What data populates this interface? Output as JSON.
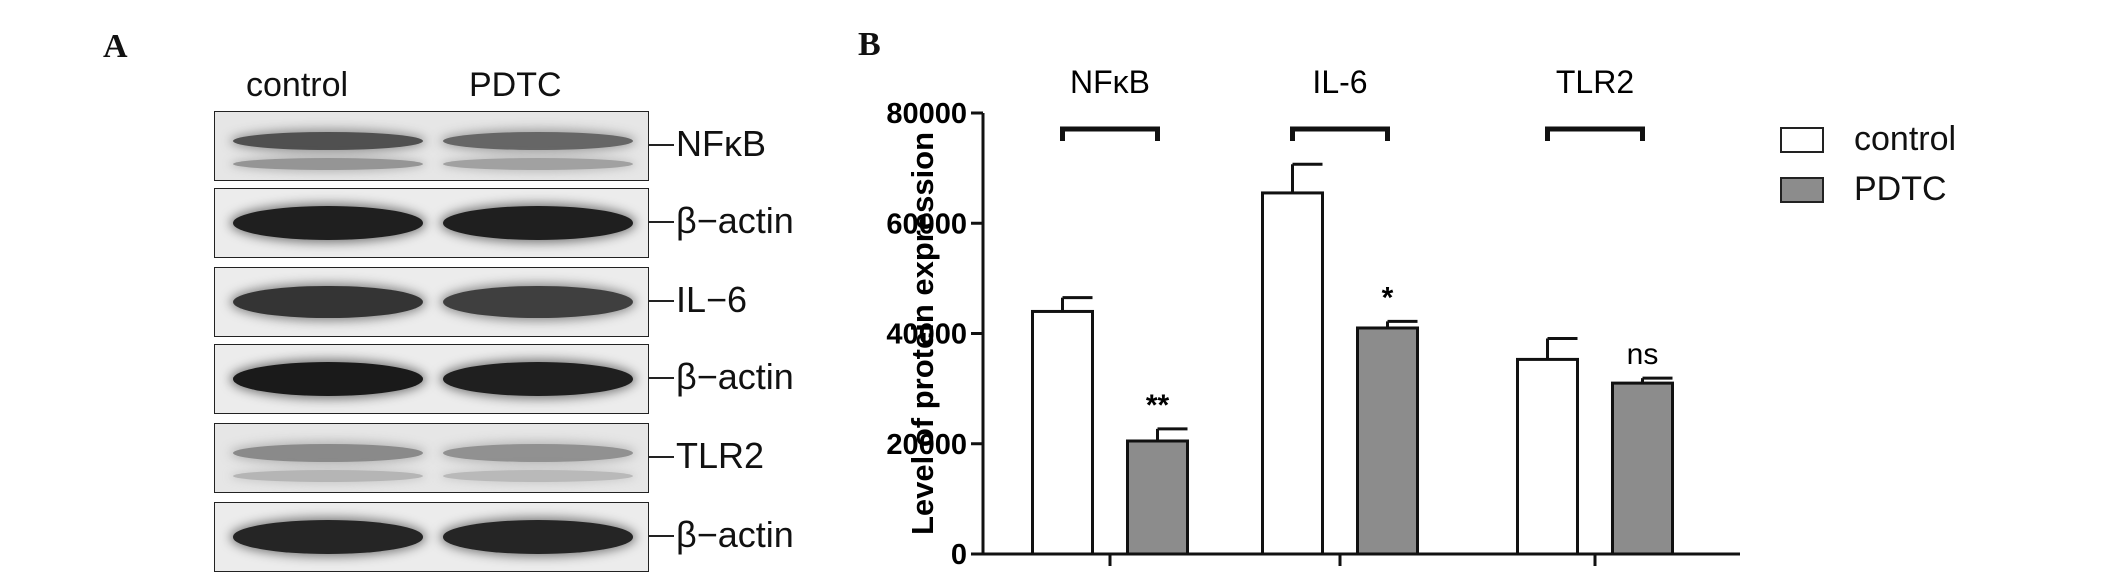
{
  "panel_a": {
    "letter": "A",
    "lanes": [
      "control",
      "PDTC"
    ],
    "blots": [
      {
        "label": "NFκB",
        "intensity": [
          0.72,
          0.62
        ],
        "secondary_band": true
      },
      {
        "label": "β−actin",
        "intensity": [
          0.95,
          0.95
        ],
        "secondary_band": false
      },
      {
        "label": "IL−6",
        "intensity": [
          0.85,
          0.8
        ],
        "secondary_band": false
      },
      {
        "label": "β−actin",
        "intensity": [
          0.97,
          0.95
        ],
        "secondary_band": false
      },
      {
        "label": "TLR2",
        "intensity": [
          0.45,
          0.42
        ],
        "secondary_band": true
      },
      {
        "label": "β−actin",
        "intensity": [
          0.92,
          0.92
        ],
        "secondary_band": false
      }
    ]
  },
  "chart_data": {
    "panel_letter": "B",
    "type": "bar",
    "categories": [
      "NFκB",
      "IL-6",
      "TLR2"
    ],
    "series": [
      {
        "name": "control",
        "color": "#ffffff",
        "values": [
          44000,
          65500,
          35300
        ],
        "errors": [
          2500,
          5200,
          3800
        ]
      },
      {
        "name": "PDTC",
        "color": "#8c8c8c",
        "values": [
          20500,
          41000,
          31000
        ],
        "errors": [
          2200,
          1200,
          900
        ]
      }
    ],
    "significance": [
      "**",
      "*",
      "ns"
    ],
    "ylabel": "Level of protein expression",
    "ylim": [
      0,
      80000
    ],
    "yticks": [
      "0",
      "20000",
      "40000",
      "60000",
      "80000"
    ],
    "grid": false,
    "legend_position": "top-right"
  }
}
